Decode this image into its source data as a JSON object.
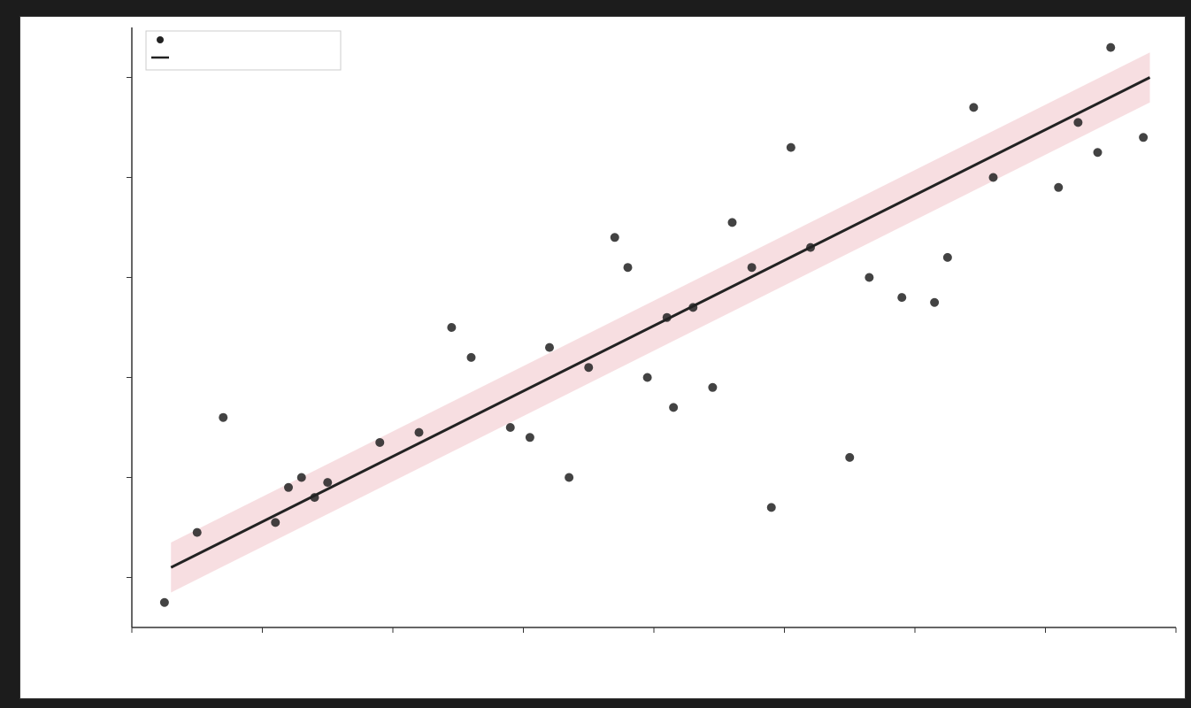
{
  "chart_data": {
    "type": "scatter",
    "title": "",
    "xlabel": "",
    "ylabel": "",
    "xlim": [
      0,
      8
    ],
    "ylim": [
      0.5,
      6.5
    ],
    "x_ticks": [
      0,
      1,
      2,
      3,
      4,
      5,
      6,
      7,
      8
    ],
    "y_ticks": [
      1,
      2,
      3,
      4,
      5,
      6
    ],
    "x_tick_labels": [
      "",
      "",
      "",
      "",
      "",
      "",
      "",
      "",
      ""
    ],
    "y_tick_labels": [
      "",
      "",
      "",
      "",
      "",
      ""
    ],
    "grid": false,
    "legend": {
      "placement": "top-left",
      "entries": [
        "",
        ""
      ]
    },
    "colors": {
      "points": "#222222",
      "fit": "#222222",
      "band": "#e8a0a8"
    },
    "series": [
      {
        "kind": "points",
        "x": [
          0.25,
          0.5,
          0.7,
          1.1,
          1.2,
          1.3,
          1.4,
          1.5,
          1.9,
          2.2,
          2.45,
          2.6,
          2.9,
          3.05,
          3.2,
          3.35,
          3.5,
          3.7,
          3.8,
          3.95,
          4.1,
          4.15,
          4.3,
          4.45,
          4.6,
          4.75,
          4.9,
          5.05,
          5.2,
          5.5,
          5.65,
          5.9,
          6.15,
          6.25,
          6.45,
          6.6,
          7.1,
          7.25,
          7.4,
          7.5,
          7.75
        ],
        "y": [
          0.75,
          1.45,
          2.6,
          1.55,
          1.9,
          2.0,
          1.8,
          1.95,
          2.35,
          2.45,
          3.5,
          3.2,
          2.5,
          2.4,
          3.3,
          2.0,
          3.1,
          4.4,
          4.1,
          3.0,
          3.6,
          2.7,
          3.7,
          2.9,
          4.55,
          4.1,
          1.7,
          5.3,
          4.3,
          2.2,
          4.0,
          3.8,
          3.75,
          4.2,
          5.7,
          5.0,
          4.9,
          5.55,
          5.25,
          6.3,
          5.4
        ]
      },
      {
        "kind": "fit",
        "x": [
          0.3,
          7.8
        ],
        "y": [
          1.1,
          6.0
        ]
      }
    ]
  }
}
